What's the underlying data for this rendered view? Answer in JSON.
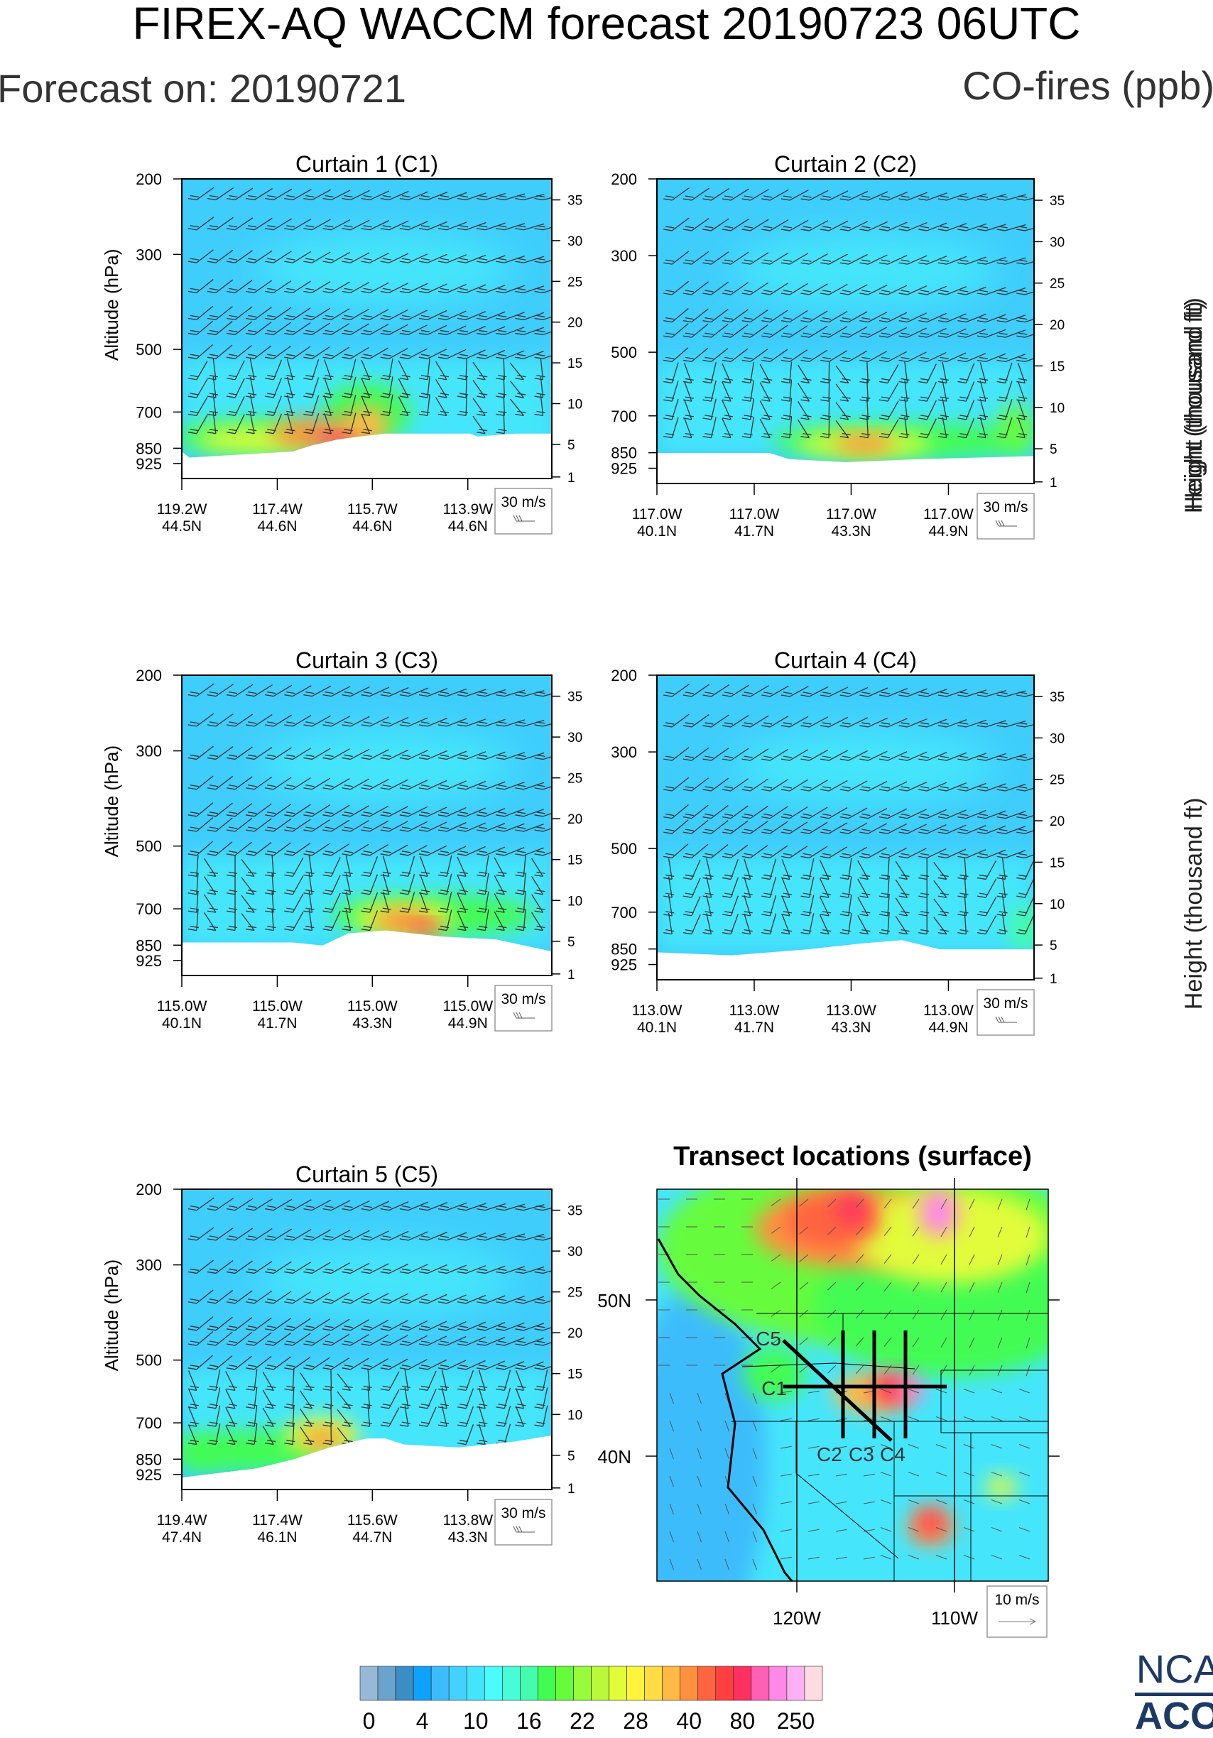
{
  "header": {
    "title": "FIREX-AQ WACCM forecast 20190723 06UTC",
    "forecast_on": "Forecast on: 20190721",
    "variable": "CO-fires (ppb)"
  },
  "logo": {
    "line1": "NCA",
    "line2": "ACO"
  },
  "colors": {
    "background_blue": "#3fcdfc",
    "cyan": "#45e6fb"
  },
  "chart_data": [
    {
      "type": "heatmap",
      "title": "Curtain 1 (C1)",
      "ylabel": "Altitude (hPa)",
      "y2label": "Height (thousand ft)",
      "yticks": [
        "200",
        "300",
        "500",
        "700",
        "850",
        "925"
      ],
      "y2ticks": [
        "35",
        "30",
        "25",
        "20",
        "15",
        "10",
        "5",
        "1"
      ],
      "xticks": [
        [
          "119.2W",
          "44.5N"
        ],
        [
          "117.4W",
          "44.6N"
        ],
        [
          "115.7W",
          "44.6N"
        ],
        [
          "113.9W",
          "44.6N"
        ]
      ],
      "ref_vector": "30 m/s"
    },
    {
      "type": "heatmap",
      "title": "Curtain 2 (C2)",
      "ylabel": "",
      "y2label": "Height (thousand ft)",
      "yticks": [
        "200",
        "300",
        "500",
        "700",
        "850",
        "925"
      ],
      "y2ticks": [
        "35",
        "30",
        "25",
        "20",
        "15",
        "10",
        "5",
        "1"
      ],
      "xticks": [
        [
          "117.0W",
          "40.1N"
        ],
        [
          "117.0W",
          "41.7N"
        ],
        [
          "117.0W",
          "43.3N"
        ],
        [
          "117.0W",
          "44.9N"
        ]
      ],
      "ref_vector": "30 m/s"
    },
    {
      "type": "heatmap",
      "title": "Curtain 3 (C3)",
      "ylabel": "Altitude (hPa)",
      "y2label": "",
      "yticks": [
        "200",
        "300",
        "500",
        "700",
        "850",
        "925"
      ],
      "y2ticks": [
        "35",
        "30",
        "25",
        "20",
        "15",
        "10",
        "5",
        "1"
      ],
      "xticks": [
        [
          "115.0W",
          "40.1N"
        ],
        [
          "115.0W",
          "41.7N"
        ],
        [
          "115.0W",
          "43.3N"
        ],
        [
          "115.0W",
          "44.9N"
        ]
      ],
      "ref_vector": "30 m/s"
    },
    {
      "type": "heatmap",
      "title": "Curtain 4 (C4)",
      "ylabel": "",
      "y2label": "Height (thousand ft)",
      "yticks": [
        "200",
        "300",
        "500",
        "700",
        "850",
        "925"
      ],
      "y2ticks": [
        "35",
        "30",
        "25",
        "20",
        "15",
        "10",
        "5",
        "1"
      ],
      "xticks": [
        [
          "113.0W",
          "40.1N"
        ],
        [
          "113.0W",
          "41.7N"
        ],
        [
          "113.0W",
          "43.3N"
        ],
        [
          "113.0W",
          "44.9N"
        ]
      ],
      "ref_vector": "30 m/s"
    },
    {
      "type": "heatmap",
      "title": "Curtain 5 (C5)",
      "ylabel": "Altitude (hPa)",
      "y2label": "",
      "yticks": [
        "200",
        "300",
        "500",
        "700",
        "850",
        "925"
      ],
      "y2ticks": [
        "35",
        "30",
        "25",
        "20",
        "15",
        "10",
        "5",
        "1"
      ],
      "xticks": [
        [
          "119.4W",
          "47.4N"
        ],
        [
          "117.4W",
          "46.1N"
        ],
        [
          "115.6W",
          "44.7N"
        ],
        [
          "113.8W",
          "43.3N"
        ]
      ],
      "ref_vector": "30 m/s"
    },
    {
      "type": "heatmap",
      "title": "Transect locations (surface)",
      "xticks": [
        "120W",
        "110W"
      ],
      "yticks": [
        "50N",
        "40N"
      ],
      "transect_labels": [
        "C5",
        "C1",
        "C2",
        "C3",
        "C4"
      ],
      "ref_vector": "10 m/s"
    }
  ],
  "colorbar": {
    "labels": [
      "0",
      "4",
      "10",
      "16",
      "22",
      "28",
      "40",
      "80",
      "250"
    ],
    "colors": [
      "#98b8d8",
      "#6aa4cc",
      "#3a8ec4",
      "#0ea2fc",
      "#3cbcfc",
      "#44d2fc",
      "#44e4fc",
      "#4afcfc",
      "#48fcd8",
      "#44fcac",
      "#42fc52",
      "#66fc3c",
      "#96fc3c",
      "#baf83a",
      "#e2fc3a",
      "#fef43e",
      "#fedc44",
      "#feba44",
      "#fe9040",
      "#fe6440",
      "#fe4040",
      "#fe3060",
      "#fe60b4",
      "#fe88e6",
      "#feb0f4",
      "#fedce2"
    ]
  }
}
